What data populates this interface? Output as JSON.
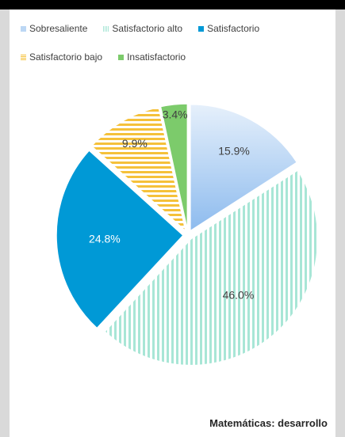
{
  "chart_data": {
    "type": "pie",
    "title": "",
    "caption": "Matemáticas: desarrollo",
    "legend_placement": "top",
    "slices": [
      {
        "name": "Sobresaliente",
        "value": 15.9,
        "label": "15.9%",
        "color": "#9dc3f0",
        "fill_style": "gradient"
      },
      {
        "name": "Satisfactorio alto",
        "value": 46.0,
        "label": "46.0%",
        "color": "#a8e6d6",
        "fill_style": "vertical-stripes"
      },
      {
        "name": "Satisfactorio",
        "value": 24.8,
        "label": "24.8%",
        "color": "#0099d6",
        "fill_style": "solid"
      },
      {
        "name": "Satisfactorio bajo",
        "value": 9.9,
        "label": "9.9%",
        "color": "#f5c13a",
        "fill_style": "horizontal-stripes"
      },
      {
        "name": "Insatisfactorio",
        "value": 3.4,
        "label": "3.4%",
        "color": "#7ccb6b",
        "fill_style": "solid"
      }
    ]
  }
}
